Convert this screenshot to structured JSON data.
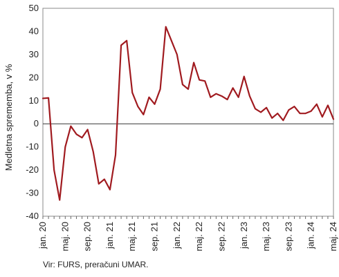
{
  "chart_data": {
    "type": "line",
    "ylabel": "Medletna sprememba, v %",
    "ylim": [
      -40,
      50
    ],
    "yticks": [
      50,
      40,
      30,
      20,
      10,
      0,
      -10,
      -20,
      -30,
      -40
    ],
    "grid": false,
    "legend": "none",
    "x": [
      "jan. 20",
      "feb. 20",
      "mar. 20",
      "apr. 20",
      "maj. 20",
      "jun. 20",
      "jul. 20",
      "avg. 20",
      "sep. 20",
      "okt. 20",
      "nov. 20",
      "dec. 20",
      "jan. 21",
      "feb. 21",
      "mar. 21",
      "apr. 21",
      "maj. 21",
      "jun. 21",
      "jul. 21",
      "avg. 21",
      "sep. 21",
      "okt. 21",
      "nov. 21",
      "dec. 21",
      "jan. 22",
      "feb. 22",
      "mar. 22",
      "apr. 22",
      "maj. 22",
      "jun. 22",
      "jul. 22",
      "avg. 22",
      "sep. 22",
      "okt. 22",
      "nov. 22",
      "dec. 22",
      "jan. 23",
      "feb. 23",
      "mar. 23",
      "apr. 23",
      "maj. 23",
      "jun. 23",
      "jul. 23",
      "avg. 23",
      "sep. 23",
      "okt. 23",
      "nov. 23",
      "dec. 23",
      "jan. 24",
      "feb. 24",
      "mar. 24",
      "apr. 24",
      "maj. 24"
    ],
    "xtick_labels": [
      {
        "label": "jan. 20",
        "index": 0
      },
      {
        "label": "maj. 20",
        "index": 4
      },
      {
        "label": "sep. 20",
        "index": 8
      },
      {
        "label": "jan. 21",
        "index": 12
      },
      {
        "label": "maj. 21",
        "index": 16
      },
      {
        "label": "sep. 21",
        "index": 20
      },
      {
        "label": "jan. 22",
        "index": 24
      },
      {
        "label": "maj. 22",
        "index": 28
      },
      {
        "label": "sep. 22",
        "index": 32
      },
      {
        "label": "jan. 23",
        "index": 36
      },
      {
        "label": "maj. 23",
        "index": 40
      },
      {
        "label": "sep. 23",
        "index": 44
      },
      {
        "label": "jan. 24",
        "index": 48
      },
      {
        "label": "maj. 24",
        "index": 52
      }
    ],
    "series": [
      {
        "color": "#a01a1f",
        "values": [
          11,
          11.2,
          -20,
          -33,
          -10,
          -1,
          -4.5,
          -6,
          -2.5,
          -12,
          -26,
          -24,
          -28.5,
          -13.5,
          34,
          36,
          13.5,
          7.5,
          4,
          11.5,
          8.5,
          15,
          42,
          36,
          30,
          17,
          15,
          26.5,
          19,
          18.5,
          11.5,
          13,
          12,
          10.5,
          15.5,
          11.5,
          20.5,
          12,
          6.5,
          5,
          7,
          2.5,
          4.5,
          1.5,
          6,
          7.5,
          4.5,
          4.5,
          5.5,
          8.5,
          3,
          8,
          2
        ]
      }
    ]
  },
  "source": "Vir: FURS, preračuni UMAR."
}
